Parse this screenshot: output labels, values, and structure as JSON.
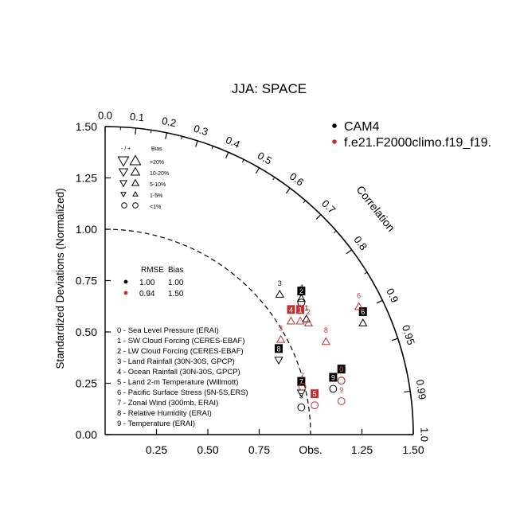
{
  "chart_data": {
    "type": "scatter",
    "subtype": "taylor-diagram",
    "title": "JJA: SPACE",
    "ylabel": "Standardized Deviations (Normalized)",
    "correlation_label": "Correlation",
    "obs_label": "Obs.",
    "xlim": [
      0,
      1.5
    ],
    "ylim": [
      0,
      1.5
    ],
    "x_ticks": [
      "0.25",
      "0.50",
      "0.75",
      "1.25",
      "1.50"
    ],
    "x_tick_values": [
      0.25,
      0.5,
      0.75,
      1.25,
      1.5
    ],
    "y_ticks": [
      "0.00",
      "0.25",
      "0.50",
      "0.75",
      "1.00",
      "1.25",
      "1.50"
    ],
    "y_tick_values": [
      0,
      0.25,
      0.5,
      0.75,
      1.0,
      1.25,
      1.5
    ],
    "corr_ticks": [
      {
        "label": "0.0",
        "value": 0.0
      },
      {
        "label": "0.1",
        "value": 0.1
      },
      {
        "label": "0.2",
        "value": 0.2
      },
      {
        "label": "0.3",
        "value": 0.3
      },
      {
        "label": "0.4",
        "value": 0.4
      },
      {
        "label": "0.5",
        "value": 0.5
      },
      {
        "label": "0.6",
        "value": 0.6
      },
      {
        "label": "0.7",
        "value": 0.7
      },
      {
        "label": "0.8",
        "value": 0.8
      },
      {
        "label": "0.9",
        "value": 0.9
      },
      {
        "label": "0.95",
        "value": 0.95
      },
      {
        "label": "0.99",
        "value": 0.99
      },
      {
        "label": "1.0",
        "value": 1.0
      }
    ],
    "reference_arc_radius": 1.0,
    "series": [
      {
        "name": "CAM4",
        "color": "#000000",
        "points": [
          {
            "label": "0",
            "x": 1.15,
            "y": 0.29,
            "marker": "circle-up",
            "boxed": true
          },
          {
            "label": "1",
            "x": 0.98,
            "y": 0.59,
            "marker": "triangle-up",
            "boxed": false
          },
          {
            "label": "2",
            "x": 0.955,
            "y": 0.67,
            "marker": "circle-up",
            "boxed": true
          },
          {
            "label": "3",
            "x": 0.85,
            "y": 0.71,
            "marker": "triangle-up",
            "boxed": false
          },
          {
            "label": "4",
            "x": 0.955,
            "y": 0.69,
            "marker": "triangle-up",
            "boxed": false
          },
          {
            "label": "5",
            "x": 0.955,
            "y": 0.16,
            "marker": "circle-down",
            "boxed": false
          },
          {
            "label": "6",
            "x": 1.255,
            "y": 0.57,
            "marker": "triangle-up",
            "boxed": true
          },
          {
            "label": "7",
            "x": 0.955,
            "y": 0.23,
            "marker": "triangle-down",
            "boxed": true
          },
          {
            "label": "8",
            "x": 0.845,
            "y": 0.39,
            "marker": "triangle-down",
            "boxed": true
          },
          {
            "label": "9",
            "x": 1.11,
            "y": 0.25,
            "marker": "circle-up",
            "boxed": true
          }
        ]
      },
      {
        "name": "f.e21.F2000climo.f19_f19.",
        "color": "#c03030",
        "points": [
          {
            "label": "0",
            "x": 1.15,
            "y": 0.29,
            "marker": "circle-up",
            "boxed": false
          },
          {
            "label": "1",
            "x": 0.95,
            "y": 0.58,
            "marker": "triangle-up",
            "boxed": true
          },
          {
            "label": "2",
            "x": 0.99,
            "y": 0.57,
            "marker": "triangle-up",
            "boxed": false
          },
          {
            "label": "3",
            "x": 0.855,
            "y": 0.49,
            "marker": "triangle-up",
            "boxed": false
          },
          {
            "label": "4",
            "x": 0.905,
            "y": 0.58,
            "marker": "triangle-up",
            "boxed": true
          },
          {
            "label": "5",
            "x": 1.02,
            "y": 0.17,
            "marker": "circle-up",
            "boxed": true
          },
          {
            "label": "6",
            "x": 1.235,
            "y": 0.65,
            "marker": "triangle-up",
            "boxed": false
          },
          {
            "label": "7",
            "x": 0.96,
            "y": 0.26,
            "marker": "circle-up",
            "boxed": false
          },
          {
            "label": "8",
            "x": 1.075,
            "y": 0.48,
            "marker": "triangle-up",
            "boxed": false
          },
          {
            "label": "9",
            "x": 1.15,
            "y": 0.19,
            "marker": "circle-up",
            "boxed": false
          }
        ]
      }
    ],
    "legend": [
      {
        "name": "CAM4",
        "color": "#000000"
      },
      {
        "name": "f.e21.F2000climo.f19_f19.",
        "color": "#c03030"
      }
    ],
    "bias_legend": {
      "headers": [
        "- / +",
        "Bias"
      ],
      "rows": [
        ">20%",
        "10-20%",
        "5-10%",
        "1-5%",
        "<1%"
      ]
    },
    "rmse_table": {
      "headers": [
        "RMSE",
        "Bias"
      ],
      "rows": [
        {
          "color": "#000000",
          "rmse": "1.00",
          "bias": "1.00"
        },
        {
          "color": "#c03030",
          "rmse": "0.94",
          "bias": "1.50"
        }
      ]
    },
    "variables": [
      "0 - Sea Level Pressure (ERAI)",
      "1 - SW Cloud Forcing (CERES-EBAF)",
      "2 - LW Cloud Forcing (CERES-EBAF)",
      "3 - Land Rainfall (30N-30S, GPCP)",
      "4 - Ocean Rainfall (30N-30S, GPCP)",
      "5 - Land 2-m Temperature (Willmott)",
      "6 - Pacific Surface Stress (5N-5S,ERS)",
      "7 - Zonal Wind (300mb, ERAI)",
      "8 - Relative Humidity (ERAI)",
      "9 - Temperature (ERAI)"
    ]
  }
}
